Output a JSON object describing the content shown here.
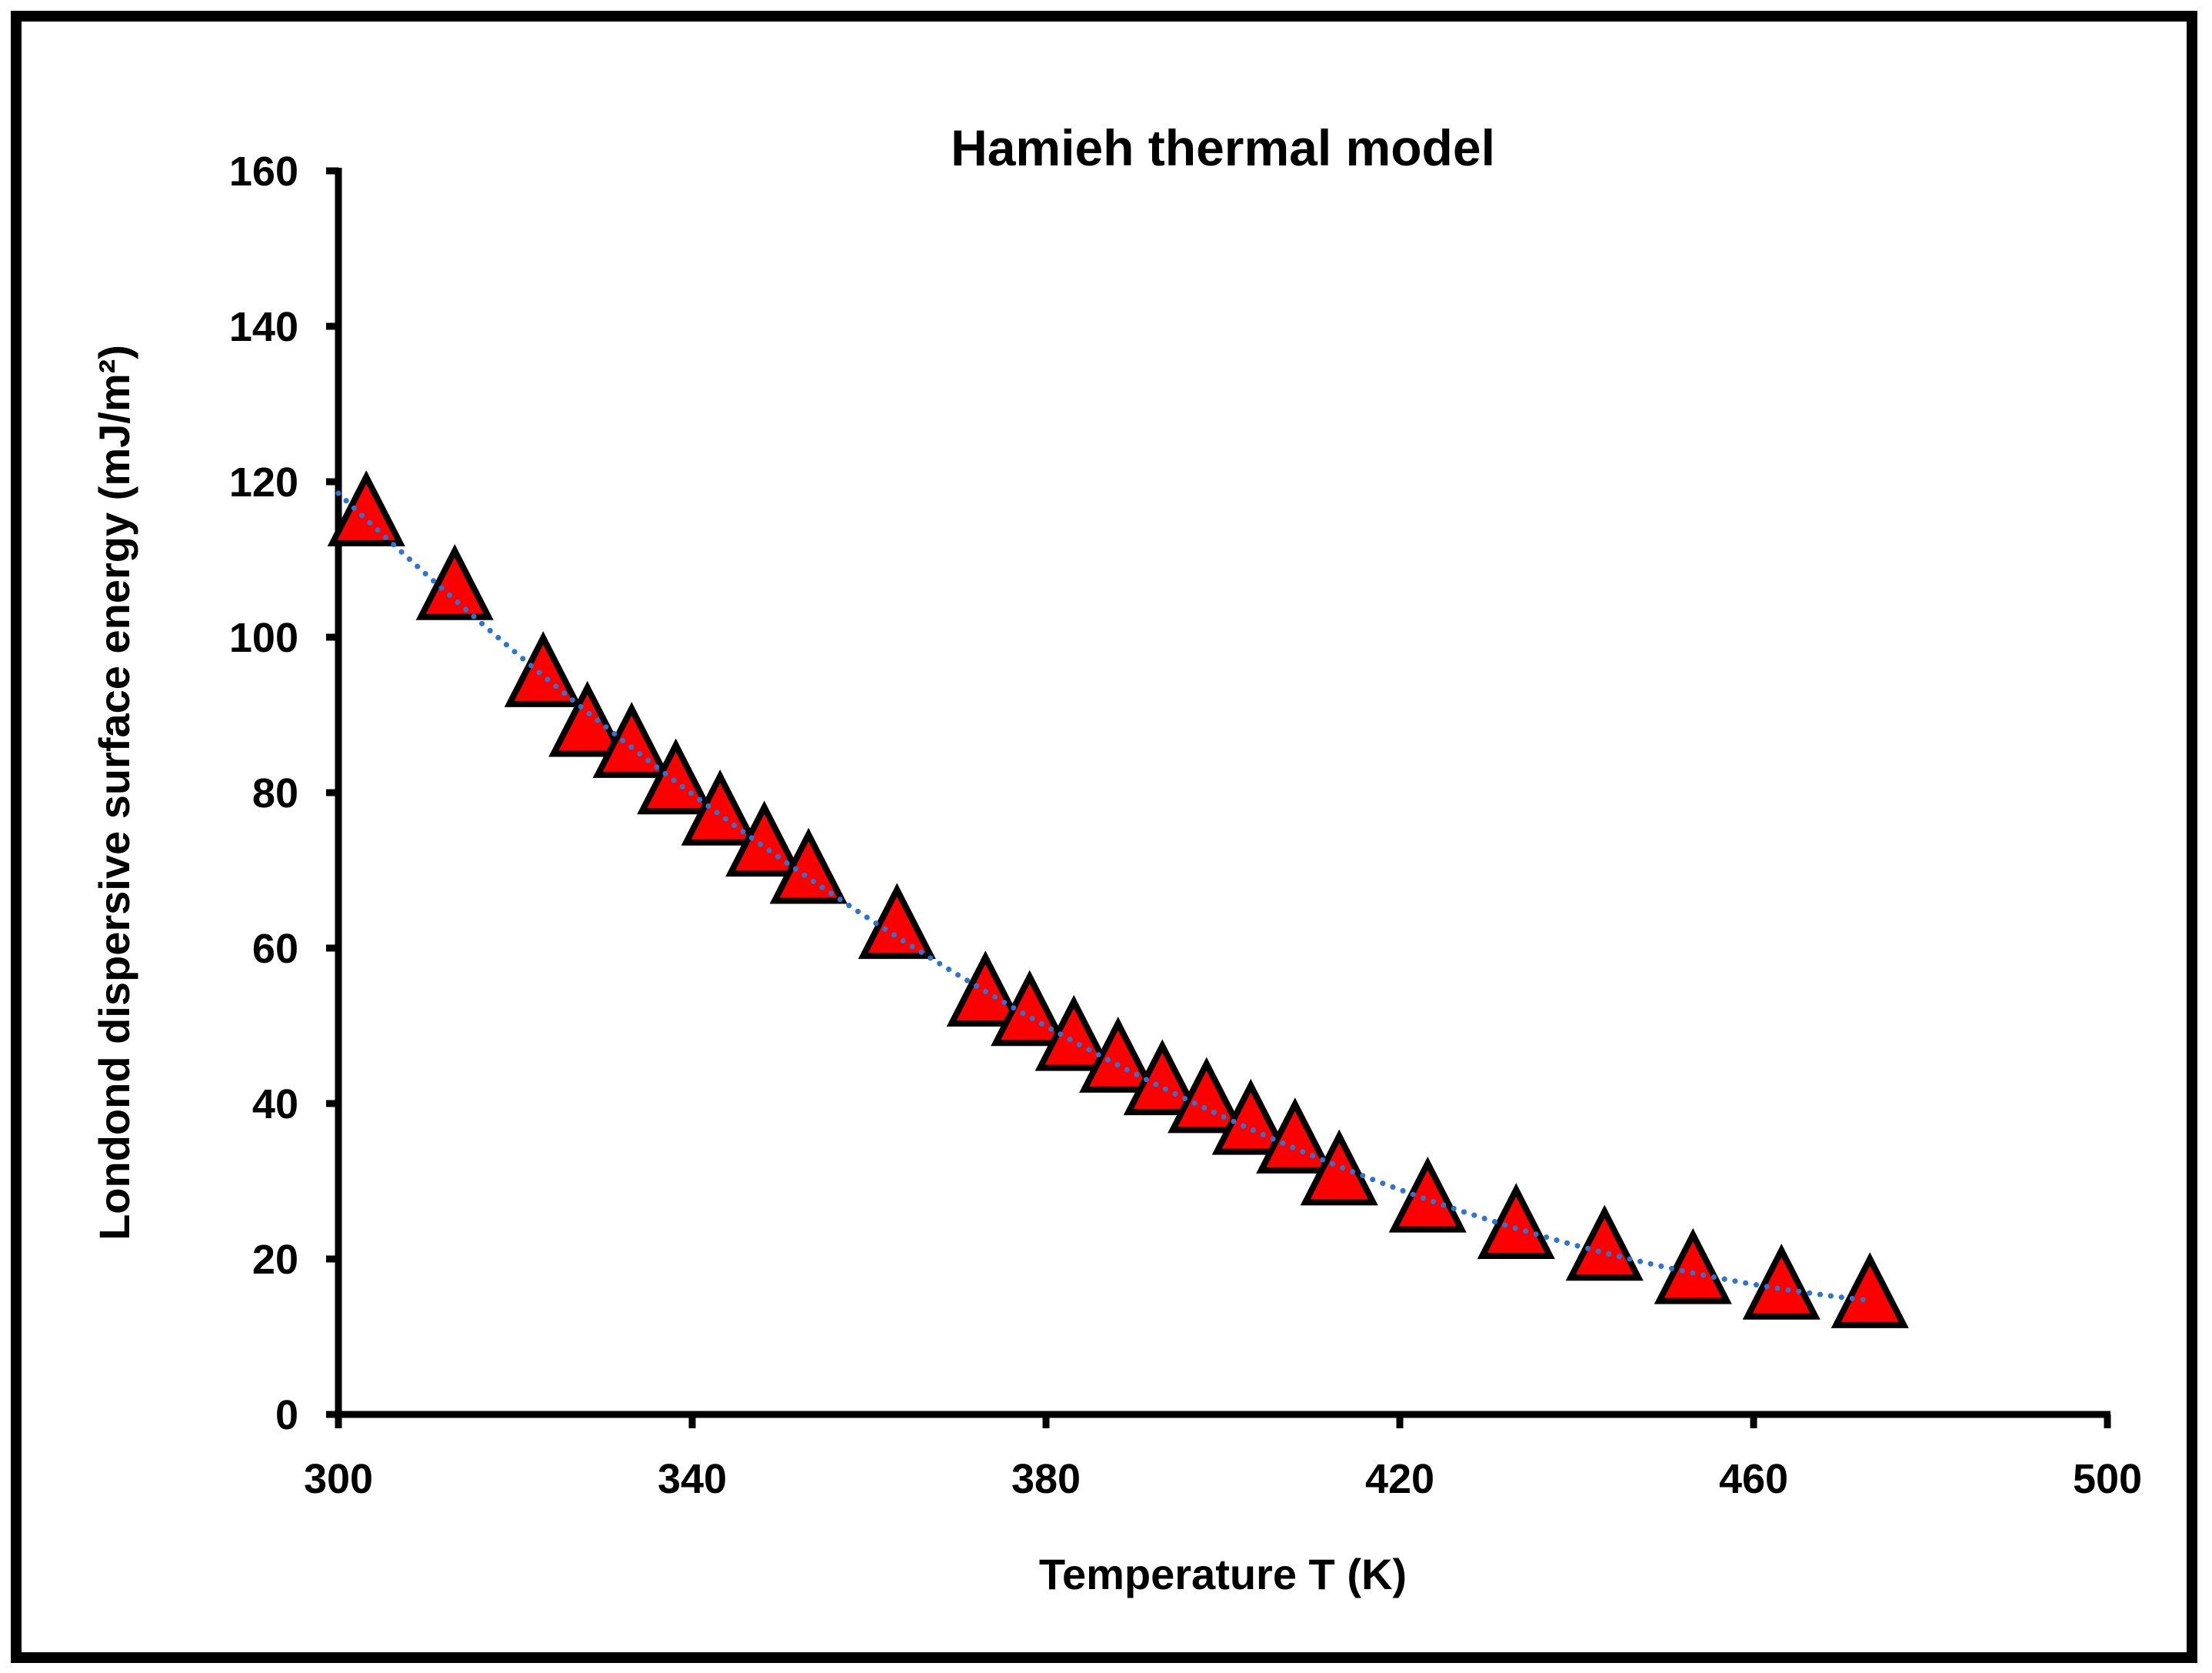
{
  "chart_data": {
    "type": "scatter",
    "title": "Hamieh thermal model",
    "xlabel": "Temperature T (K)",
    "ylabel": "Londond dispersive surface energy (mJ/m²)",
    "xlim": [
      300,
      500
    ],
    "ylim": [
      0,
      160
    ],
    "xticks": [
      300,
      340,
      380,
      420,
      460,
      500
    ],
    "yticks": [
      0,
      20,
      40,
      60,
      80,
      100,
      120,
      140,
      160
    ],
    "grid": false,
    "legend": null,
    "series": [
      {
        "name": "data",
        "marker": "triangle",
        "color": "#FF0000",
        "edgecolor": "#000000",
        "x": [
          303.15,
          313.15,
          323.15,
          328.15,
          333.15,
          338.15,
          343.15,
          348.15,
          353.15,
          363.15,
          373.15,
          378.15,
          383.15,
          388.15,
          393.15,
          398.15,
          403.15,
          408.15,
          413.15,
          423.15,
          433.15,
          443.15,
          453.15,
          463.15,
          473.15
        ],
        "y": [
          115.5,
          106.0,
          94.8,
          88.4,
          85.7,
          81.0,
          77.0,
          73.0,
          69.5,
          62.4,
          53.7,
          51.2,
          48.0,
          45.2,
          42.3,
          40.0,
          37.2,
          34.8,
          30.7,
          27.2,
          23.8,
          21.0,
          18.0,
          16.0,
          14.9
        ]
      },
      {
        "name": "trend",
        "type": "line",
        "style": "dotted",
        "color": "#2E75D0",
        "x": [
          300,
          320,
          340,
          360,
          380,
          400,
          420,
          440,
          460,
          473.15
        ],
        "y": [
          117.5,
          97.5,
          80.5,
          65.5,
          51.8,
          39.5,
          29.0,
          21.5,
          16.5,
          14.9
        ]
      }
    ]
  }
}
